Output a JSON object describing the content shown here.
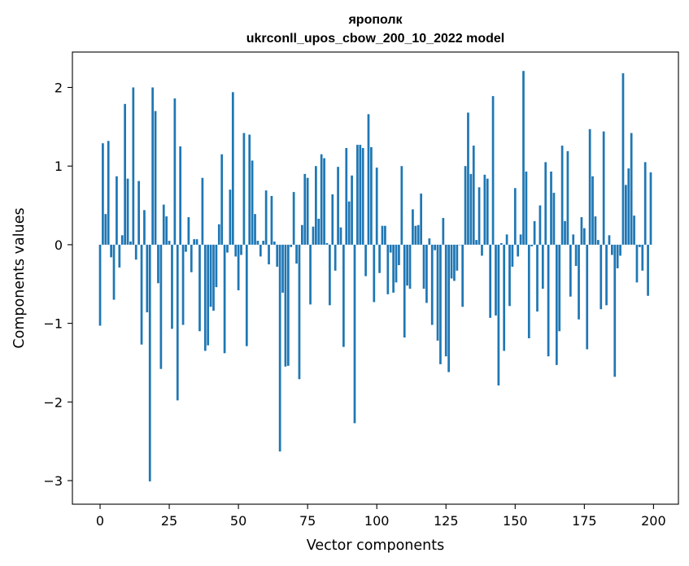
{
  "chart_data": {
    "type": "bar",
    "title": "ярополк",
    "subtitle": "ukrconll_upos_cbow_200_10_2022 model",
    "xlabel": "Vector components",
    "ylabel": "Components values",
    "xlim": [
      -10,
      209
    ],
    "ylim": [
      -3.3,
      2.45
    ],
    "xticks": [
      0,
      25,
      50,
      75,
      100,
      125,
      150,
      175,
      200
    ],
    "yticks": [
      -3,
      -2,
      -1,
      0,
      1,
      2
    ],
    "ytick_labels": [
      "−3",
      "−2",
      "−1",
      "0",
      "1",
      "2"
    ],
    "grid": false,
    "color": "#1f77b4",
    "values": [
      -1.03,
      1.29,
      0.39,
      1.32,
      -0.16,
      -0.7,
      0.87,
      -0.29,
      0.12,
      1.79,
      0.84,
      0.04,
      2.0,
      -0.19,
      0.81,
      -1.27,
      0.44,
      -0.86,
      -3.01,
      2.0,
      1.7,
      -0.49,
      -1.58,
      0.51,
      0.36,
      0.05,
      -1.07,
      1.86,
      -1.98,
      1.25,
      -1.02,
      -0.09,
      0.35,
      -0.35,
      0.07,
      0.07,
      -1.1,
      0.85,
      -1.35,
      -1.28,
      -0.79,
      -0.84,
      -0.54,
      0.26,
      1.15,
      -1.38,
      -0.1,
      0.7,
      1.94,
      -0.15,
      -0.58,
      -0.13,
      1.42,
      -1.29,
      1.4,
      1.07,
      0.39,
      0.05,
      -0.15,
      0.05,
      0.69,
      -0.25,
      0.62,
      0.04,
      -0.28,
      -2.63,
      -0.61,
      -1.55,
      -1.54,
      -0.03,
      0.67,
      -0.24,
      -1.71,
      0.25,
      0.9,
      0.85,
      -0.76,
      0.23,
      1.0,
      0.33,
      1.15,
      1.1,
      0.02,
      -0.77,
      0.64,
      -0.33,
      0.99,
      0.22,
      -1.3,
      1.23,
      0.55,
      0.88,
      -2.27,
      1.27,
      1.27,
      1.23,
      -0.4,
      1.66,
      1.24,
      -0.73,
      0.98,
      -0.36,
      0.24,
      0.24,
      -0.63,
      -0.1,
      -0.61,
      -0.48,
      -0.26,
      1.0,
      -1.18,
      -0.52,
      -0.56,
      0.45,
      0.24,
      0.25,
      0.65,
      -0.56,
      -0.74,
      0.08,
      -1.02,
      -0.07,
      -1.22,
      -1.52,
      0.34,
      -1.42,
      -1.62,
      -0.43,
      -0.46,
      -0.33,
      0.0,
      -0.79,
      1.0,
      1.68,
      0.9,
      1.26,
      0.06,
      0.73,
      -0.14,
      0.89,
      0.84,
      -0.93,
      1.89,
      -0.9,
      -1.79,
      0.02,
      -1.35,
      0.13,
      -0.78,
      -0.28,
      0.72,
      -0.15,
      0.13,
      2.21,
      0.93,
      -1.19,
      -0.02,
      0.3,
      -0.85,
      0.5,
      -0.56,
      1.05,
      -1.42,
      0.93,
      0.66,
      -1.53,
      -1.1,
      1.26,
      0.3,
      1.19,
      -0.66,
      0.13,
      -0.27,
      -0.95,
      0.35,
      0.21,
      -1.33,
      1.47,
      0.87,
      0.36,
      0.06,
      -0.82,
      1.44,
      -0.77,
      0.12,
      -0.13,
      -1.68,
      -0.3,
      -0.14,
      2.18,
      0.76,
      0.97,
      1.42,
      0.37,
      -0.48,
      -0.03,
      -0.33,
      1.05,
      -0.65,
      0.92
    ]
  }
}
